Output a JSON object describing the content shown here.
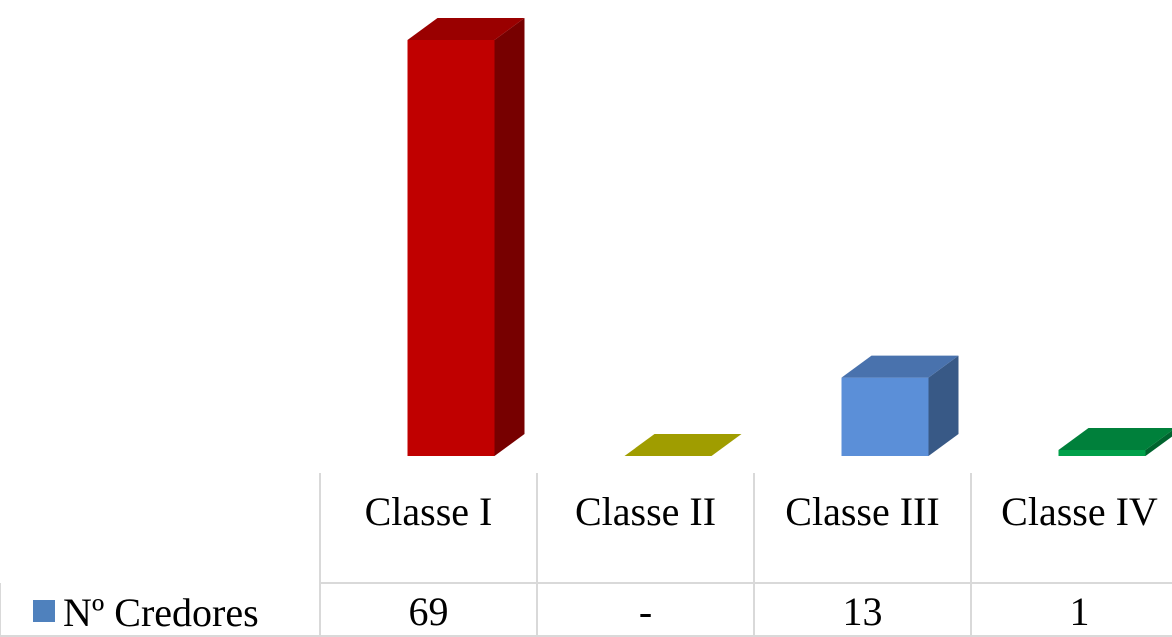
{
  "chart_data": {
    "type": "bar3d",
    "categories": [
      "Classe I",
      "Classe II",
      "Classe III",
      "Classe IV"
    ],
    "series": [
      {
        "name": "Nº Credores",
        "color": "#4f81bd",
        "values": [
          69,
          0,
          13,
          1
        ],
        "value_labels": [
          "69",
          "-",
          "13",
          "1"
        ],
        "colors": [
          "#c00000",
          "#c8c400",
          "#5b8fd8",
          "#00a04a"
        ]
      }
    ]
  }
}
